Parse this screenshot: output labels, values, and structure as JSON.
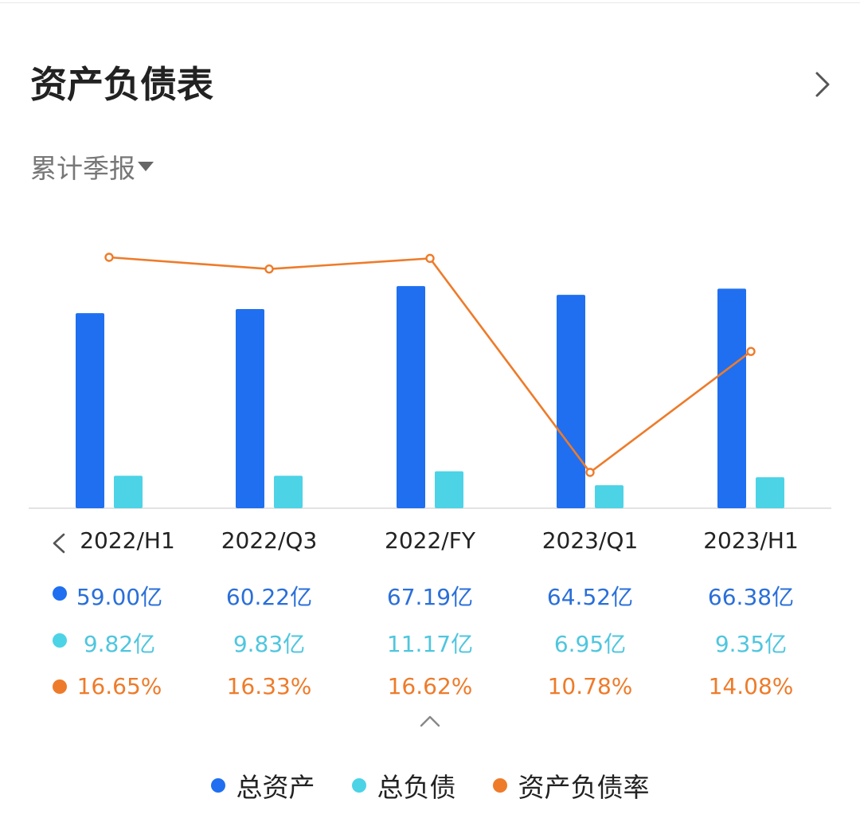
{
  "header": {
    "title": "资产负债表",
    "more_icon": "chevron-right-icon"
  },
  "period_selector": {
    "label": "累计季报",
    "icon": "caret-down-icon"
  },
  "nav": {
    "prev_icon": "chevron-left-icon",
    "collapse_icon": "chevron-up-icon"
  },
  "colors": {
    "assets": "#1f6ff0",
    "liabilities": "#4cd3e6",
    "ratio": "#ee7b2a",
    "assets_text": "#2a6fd9",
    "liabilities_text": "#4fc6de",
    "ratio_text": "#ee7b2a"
  },
  "rows": {
    "assets": [
      "59.00亿",
      "60.22亿",
      "67.19亿",
      "64.52亿",
      "66.38亿"
    ],
    "liabilities": [
      "9.82亿",
      "9.83亿",
      "11.17亿",
      "6.95亿",
      "9.35亿"
    ],
    "ratio": [
      "16.65%",
      "16.33%",
      "16.62%",
      "10.78%",
      "14.08%"
    ]
  },
  "legend": [
    "总资产",
    "总负债",
    "资产负债率"
  ],
  "chart_data": {
    "type": "bar",
    "categories": [
      "2022/H1",
      "2022/Q3",
      "2022/FY",
      "2023/Q1",
      "2023/H1"
    ],
    "series": [
      {
        "name": "总资产",
        "type": "bar",
        "unit": "亿",
        "values": [
          59.0,
          60.22,
          67.19,
          64.52,
          66.38
        ]
      },
      {
        "name": "总负债",
        "type": "bar",
        "unit": "亿",
        "values": [
          9.82,
          9.83,
          11.17,
          6.95,
          9.35
        ]
      },
      {
        "name": "资产负债率",
        "type": "line",
        "unit": "%",
        "values": [
          16.65,
          16.33,
          16.62,
          10.78,
          14.08
        ]
      }
    ],
    "title": "资产负债表",
    "legend_position": "bottom",
    "grid": false
  }
}
